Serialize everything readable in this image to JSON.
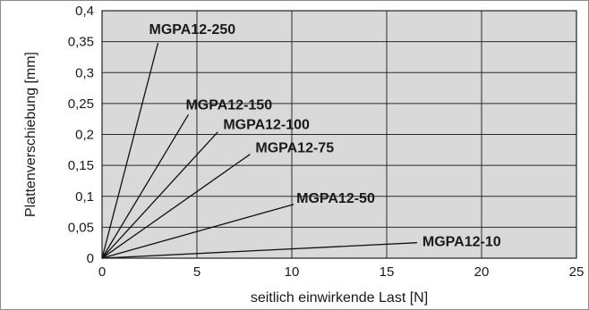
{
  "chart_data": {
    "type": "line",
    "title": "",
    "xlabel": "seitlich einwirkende Last [N]",
    "ylabel": "Plattenverschiebung [mm]",
    "xlim": [
      0,
      25
    ],
    "ylim": [
      0,
      0.4
    ],
    "x_ticks": [
      "0",
      "5",
      "10",
      "15",
      "20",
      "25"
    ],
    "y_ticks": [
      "0",
      "0,05",
      "0,1",
      "0,15",
      "0,2",
      "0,25",
      "0,3",
      "0,35",
      "0,4"
    ],
    "grid": true,
    "plot_background": "#d9d9d9",
    "line_color": "#111111",
    "series": [
      {
        "name": "MGPA12-250",
        "x": [
          0,
          2.95
        ],
        "y": [
          0,
          0.348
        ]
      },
      {
        "name": "MGPA12-150",
        "x": [
          0,
          4.55
        ],
        "y": [
          0,
          0.232
        ]
      },
      {
        "name": "MGPA12-100",
        "x": [
          0,
          6.1
        ],
        "y": [
          0,
          0.204
        ]
      },
      {
        "name": "MGPA12-75",
        "x": [
          0,
          7.8
        ],
        "y": [
          0,
          0.168
        ]
      },
      {
        "name": "MGPA12-50",
        "x": [
          0,
          10.1
        ],
        "y": [
          0,
          0.087
        ]
      },
      {
        "name": "MGPA12-10",
        "x": [
          0,
          16.6
        ],
        "y": [
          0,
          0.025
        ]
      }
    ]
  }
}
